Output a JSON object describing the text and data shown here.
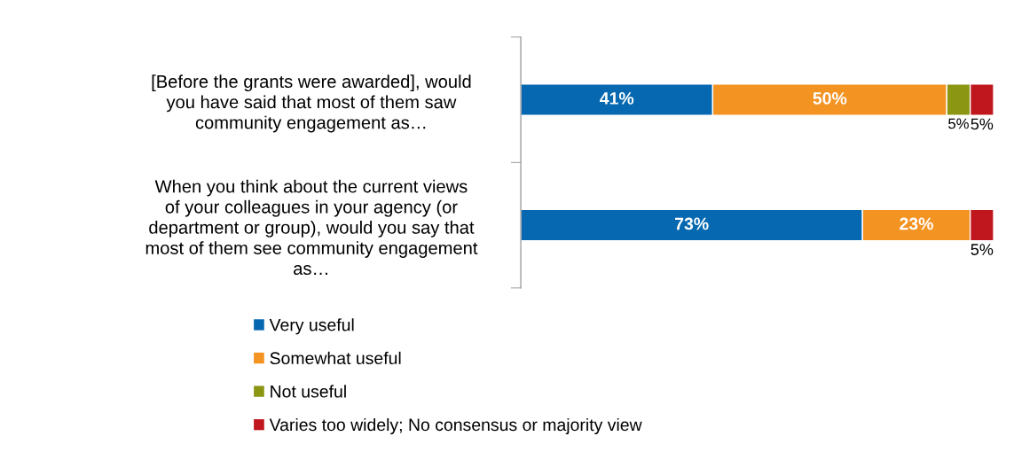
{
  "chart_data": {
    "type": "bar",
    "orientation": "horizontal",
    "stacked": true,
    "categories": [
      "[Before the grants were awarded], would you have said that most of them saw community engagement as…",
      "When you think about the current views of your colleagues in your agency (or department or group), would you say that most of them see community engagement as…"
    ],
    "series": [
      {
        "name": "Very useful",
        "color": "#0568b0",
        "values": [
          41,
          73
        ],
        "value_labels": [
          "41%",
          "73%"
        ]
      },
      {
        "name": "Somewhat useful",
        "color": "#f39322",
        "values": [
          50,
          23
        ],
        "value_labels": [
          "50%",
          "23%"
        ]
      },
      {
        "name": "Not useful",
        "color": "#8b9613",
        "values": [
          5,
          null
        ],
        "value_labels": [
          "5%",
          null
        ]
      },
      {
        "name": "Varies too widely; No consensus or majority view",
        "color": "#c0171f",
        "values": [
          5,
          5
        ],
        "value_labels": [
          "5%",
          "5%"
        ]
      }
    ],
    "legend": "bottom",
    "grid": false,
    "tick_labels": "y"
  }
}
